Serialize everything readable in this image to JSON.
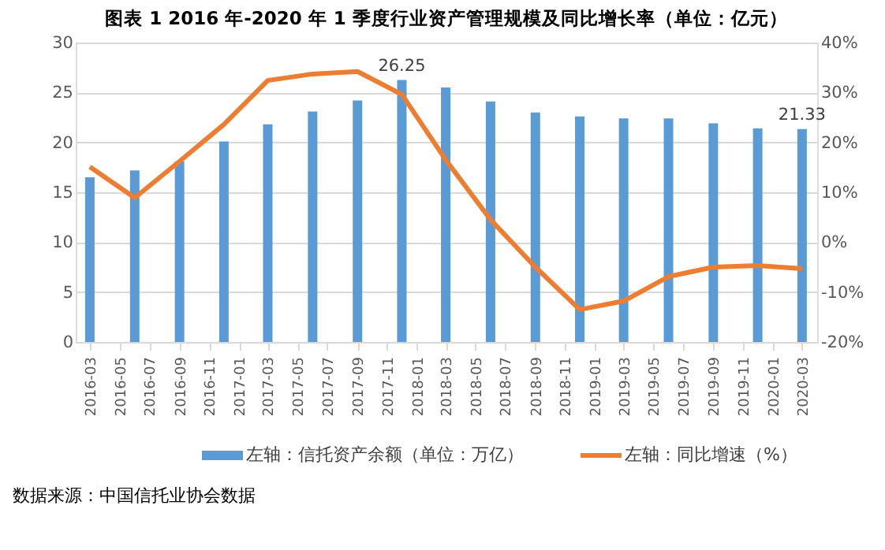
{
  "chart_data": {
    "type": "bar",
    "title": "图表 1   2016 年-2020 年 1 季度行业资产管理规模及同比增长率（单位：亿元）",
    "x": [
      "2016-03",
      "2016-06",
      "2016-09",
      "2016-12",
      "2017-03",
      "2017-06",
      "2017-09",
      "2017-12",
      "2018-03",
      "2018-06",
      "2018-09",
      "2018-12",
      "2019-03",
      "2019-06",
      "2019-09",
      "2019-12",
      "2020-03"
    ],
    "xlim": [
      "2016-02",
      "2020-04"
    ],
    "xticks": [
      "2016-03",
      "2016-05",
      "2016-07",
      "2016-09",
      "2016-11",
      "2017-01",
      "2017-03",
      "2017-05",
      "2017-07",
      "2017-09",
      "2017-11",
      "2018-01",
      "2018-03",
      "2018-05",
      "2018-07",
      "2018-09",
      "2018-11",
      "2019-01",
      "2019-03",
      "2019-05",
      "2019-07",
      "2019-09",
      "2019-11",
      "2020-01",
      "2020-03"
    ],
    "series": [
      {
        "name": "左轴：信托资产余额（单位：万亿）",
        "color": "#5b9bd5",
        "values": [
          16.5,
          17.2,
          18.1,
          20.1,
          21.8,
          23.1,
          24.2,
          26.25,
          25.5,
          24.1,
          23.0,
          22.6,
          22.4,
          22.4,
          21.9,
          21.4,
          21.33
        ],
        "value_labels": [
          null,
          null,
          null,
          null,
          null,
          null,
          null,
          "26.25",
          null,
          null,
          null,
          null,
          null,
          null,
          null,
          null,
          "21.33"
        ]
      },
      {
        "name": "左轴：同比增速（%）",
        "type": "line",
        "axis": "y2",
        "color": "#ed7d31",
        "values": [
          15.1,
          8.9,
          16.2,
          23.6,
          32.4,
          33.7,
          34.2,
          29.6,
          16.5,
          4.5,
          -5.0,
          -13.5,
          -11.8,
          -6.9,
          -5.0,
          -4.7,
          -5.3
        ]
      }
    ],
    "ylim": [
      0,
      30
    ],
    "yticks": [
      0,
      5,
      10,
      15,
      20,
      25,
      30
    ],
    "y2lim": [
      -20,
      40
    ],
    "y2ticks": [
      {
        "value": -20,
        "label": "-20%"
      },
      {
        "value": -10,
        "label": "-10%"
      },
      {
        "value": 0,
        "label": "0%"
      },
      {
        "value": 10,
        "label": "10%"
      },
      {
        "value": 20,
        "label": "20%"
      },
      {
        "value": 30,
        "label": "30%"
      },
      {
        "value": 40,
        "label": "40%"
      }
    ],
    "grid": "y",
    "legend": "bottom",
    "marker": "none",
    "line_style": "solid",
    "annotations": [
      "数据来源：中国信托业协会数据"
    ]
  }
}
